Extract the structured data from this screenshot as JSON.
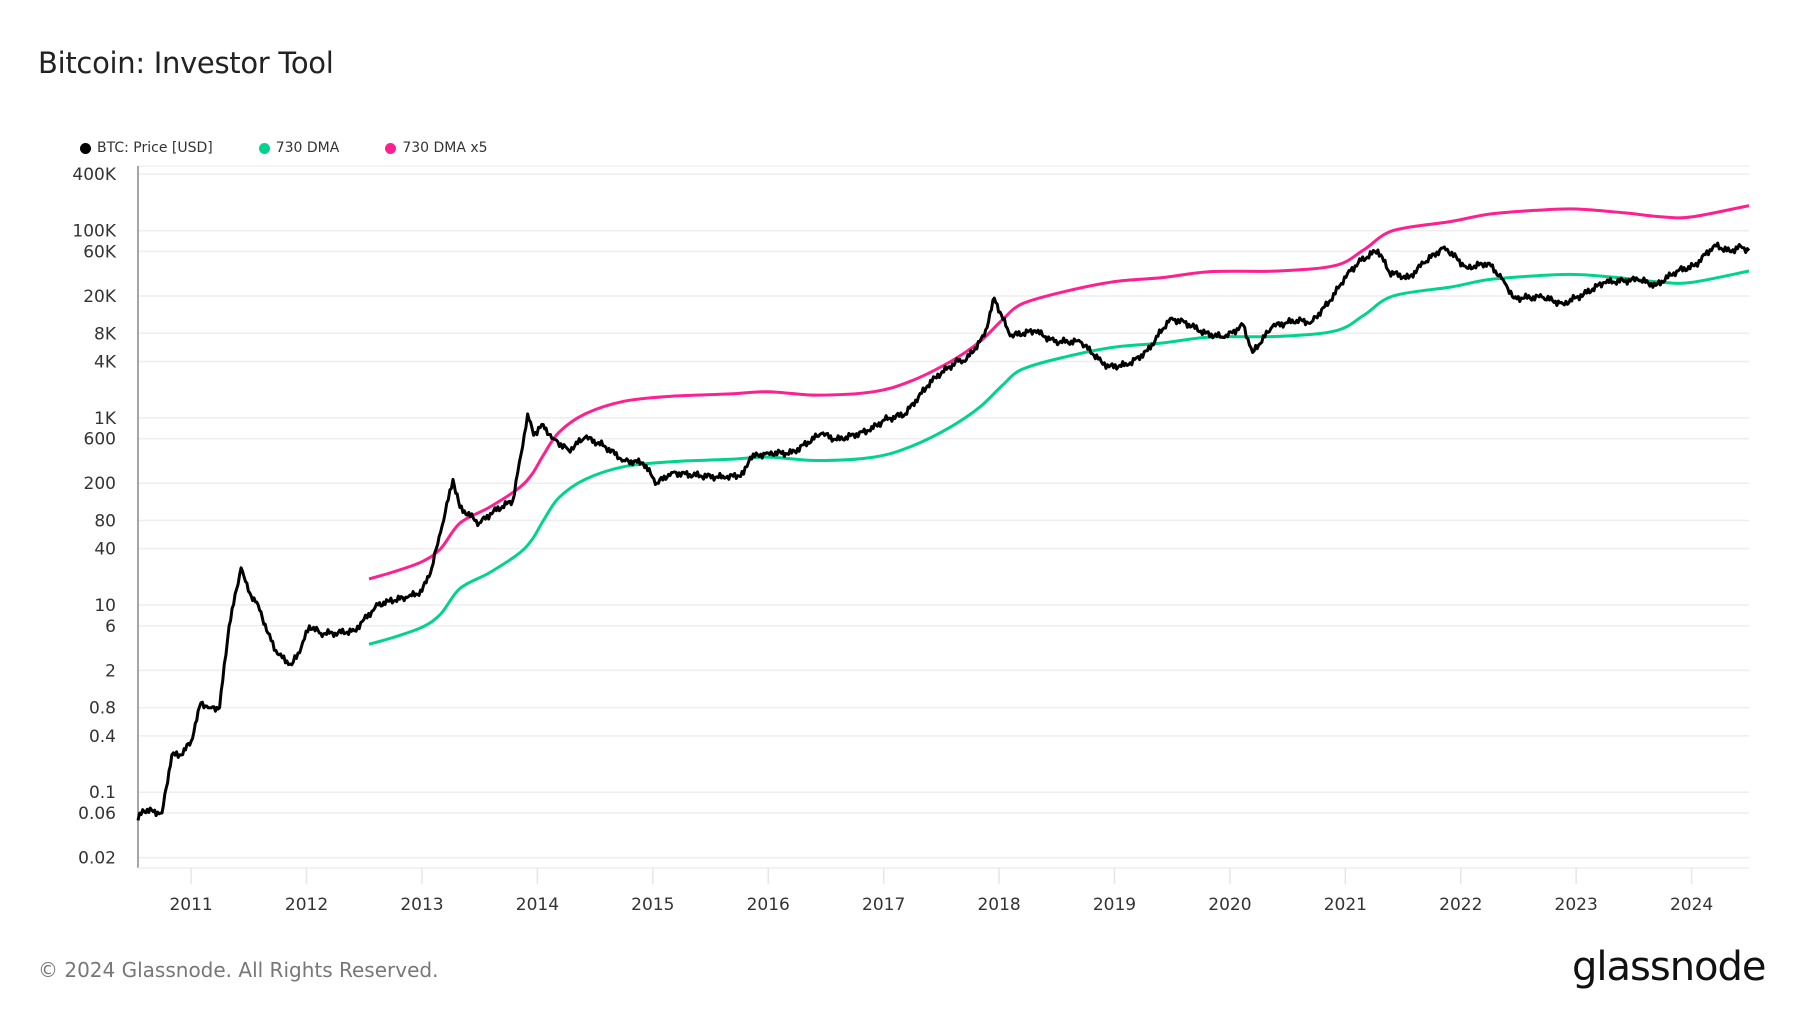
{
  "title": "Bitcoin: Investor Tool",
  "footer": "© 2024 Glassnode. All Rights Reserved.",
  "logo": "glassnode",
  "chart_data": {
    "type": "line",
    "title": "Bitcoin: Investor Tool",
    "xlabel": "",
    "ylabel": "",
    "yscale": "log",
    "ylim": [
      0.0155,
      490000
    ],
    "xlim": [
      "2010-07-17",
      "2024-07-01"
    ],
    "grid": "horizontal",
    "legend_position": "top-left",
    "x_ticks": [
      "2011",
      "2012",
      "2013",
      "2014",
      "2015",
      "2016",
      "2017",
      "2018",
      "2019",
      "2020",
      "2021",
      "2022",
      "2023",
      "2024"
    ],
    "y_ticks": [
      {
        "label": "400K",
        "value": 400000
      },
      {
        "label": "100K",
        "value": 100000
      },
      {
        "label": "60K",
        "value": 60000
      },
      {
        "label": "20K",
        "value": 20000
      },
      {
        "label": "8K",
        "value": 8000
      },
      {
        "label": "4K",
        "value": 4000
      },
      {
        "label": "1K",
        "value": 1000
      },
      {
        "label": "600",
        "value": 600
      },
      {
        "label": "200",
        "value": 200
      },
      {
        "label": "80",
        "value": 80
      },
      {
        "label": "40",
        "value": 40
      },
      {
        "label": "10",
        "value": 10
      },
      {
        "label": "6",
        "value": 6
      },
      {
        "label": "2",
        "value": 2
      },
      {
        "label": "0.8",
        "value": 0.8
      },
      {
        "label": "0.4",
        "value": 0.4
      },
      {
        "label": "0.1",
        "value": 0.1
      },
      {
        "label": "0.06",
        "value": 0.06
      },
      {
        "label": "0.02",
        "value": 0.02
      }
    ],
    "series": [
      {
        "name": "BTC: Price [USD]",
        "color": "#000000",
        "points": [
          [
            "2010-07-17",
            0.05
          ],
          [
            "2010-08-01",
            0.065
          ],
          [
            "2010-10-01",
            0.06
          ],
          [
            "2010-11-01",
            0.25
          ],
          [
            "2010-12-01",
            0.25
          ],
          [
            "2011-01-01",
            0.35
          ],
          [
            "2011-02-01",
            0.9
          ],
          [
            "2011-03-01",
            0.8
          ],
          [
            "2011-04-01",
            0.8
          ],
          [
            "2011-05-01",
            6
          ],
          [
            "2011-06-08",
            25
          ],
          [
            "2011-07-01",
            14
          ],
          [
            "2011-08-01",
            10
          ],
          [
            "2011-09-01",
            5
          ],
          [
            "2011-10-01",
            3
          ],
          [
            "2011-11-15",
            2.3
          ],
          [
            "2011-12-15",
            3.5
          ],
          [
            "2012-01-10",
            6
          ],
          [
            "2012-02-15",
            5
          ],
          [
            "2012-04-01",
            5
          ],
          [
            "2012-06-01",
            5.3
          ],
          [
            "2012-07-01",
            7
          ],
          [
            "2012-08-15",
            10
          ],
          [
            "2012-09-15",
            11
          ],
          [
            "2012-11-15",
            12
          ],
          [
            "2013-01-01",
            14
          ],
          [
            "2013-02-01",
            25
          ],
          [
            "2013-03-01",
            60
          ],
          [
            "2013-04-09",
            220
          ],
          [
            "2013-05-01",
            110
          ],
          [
            "2013-07-01",
            75
          ],
          [
            "2013-08-15",
            100
          ],
          [
            "2013-10-15",
            130
          ],
          [
            "2013-11-10",
            400
          ],
          [
            "2013-12-01",
            1100
          ],
          [
            "2013-12-20",
            650
          ],
          [
            "2014-01-15",
            850
          ],
          [
            "2014-02-20",
            600
          ],
          [
            "2014-04-10",
            450
          ],
          [
            "2014-06-01",
            620
          ],
          [
            "2014-08-01",
            500
          ],
          [
            "2014-10-01",
            350
          ],
          [
            "2014-12-01",
            330
          ],
          [
            "2015-01-14",
            200
          ],
          [
            "2015-03-01",
            260
          ],
          [
            "2015-06-01",
            240
          ],
          [
            "2015-08-20",
            230
          ],
          [
            "2015-10-15",
            250
          ],
          [
            "2015-11-05",
            380
          ],
          [
            "2016-01-01",
            420
          ],
          [
            "2016-03-15",
            420
          ],
          [
            "2016-06-18",
            680
          ],
          [
            "2016-08-05",
            580
          ],
          [
            "2016-11-15",
            730
          ],
          [
            "2017-01-04",
            950
          ],
          [
            "2017-03-10",
            1100
          ],
          [
            "2017-05-20",
            2200
          ],
          [
            "2017-06-12",
            2700
          ],
          [
            "2017-08-30",
            4200
          ],
          [
            "2017-09-15",
            4000
          ],
          [
            "2017-11-15",
            7500
          ],
          [
            "2017-12-17",
            19000
          ],
          [
            "2018-02-05",
            7500
          ],
          [
            "2018-04-25",
            8500
          ],
          [
            "2018-06-25",
            6500
          ],
          [
            "2018-09-15",
            6500
          ],
          [
            "2018-11-20",
            4000
          ],
          [
            "2018-12-15",
            3500
          ],
          [
            "2019-02-15",
            3700
          ],
          [
            "2019-04-15",
            5200
          ],
          [
            "2019-06-26",
            11500
          ],
          [
            "2019-08-10",
            10500
          ],
          [
            "2019-10-15",
            8000
          ],
          [
            "2019-12-15",
            7200
          ],
          [
            "2020-02-12",
            9800
          ],
          [
            "2020-03-13",
            5000
          ],
          [
            "2020-05-15",
            9500
          ],
          [
            "2020-07-31",
            11000
          ],
          [
            "2020-09-15",
            10500
          ],
          [
            "2020-11-15",
            18000
          ],
          [
            "2021-01-08",
            35000
          ],
          [
            "2021-02-20",
            48000
          ],
          [
            "2021-04-14",
            62000
          ],
          [
            "2021-05-20",
            36000
          ],
          [
            "2021-07-20",
            31000
          ],
          [
            "2021-09-05",
            45000
          ],
          [
            "2021-11-10",
            67000
          ],
          [
            "2022-01-20",
            40000
          ],
          [
            "2022-03-28",
            45000
          ],
          [
            "2022-05-15",
            30000
          ],
          [
            "2022-06-18",
            19000
          ],
          [
            "2022-09-15",
            19500
          ],
          [
            "2022-11-20",
            16500
          ],
          [
            "2023-01-25",
            21000
          ],
          [
            "2023-03-31",
            28000
          ],
          [
            "2023-07-15",
            30000
          ],
          [
            "2023-09-10",
            26000
          ],
          [
            "2023-11-15",
            37000
          ],
          [
            "2024-01-10",
            42000
          ],
          [
            "2024-03-14",
            70000
          ],
          [
            "2024-05-01",
            60000
          ],
          [
            "2024-06-05",
            68000
          ],
          [
            "2024-07-01",
            61000
          ]
        ]
      },
      {
        "name": "730 DMA",
        "color": "#00d48c",
        "points": [
          [
            "2012-07-17",
            3.8
          ],
          [
            "2012-10-01",
            4.5
          ],
          [
            "2013-01-01",
            5.8
          ],
          [
            "2013-03-01",
            8
          ],
          [
            "2013-05-01",
            15
          ],
          [
            "2013-08-01",
            22
          ],
          [
            "2013-11-01",
            35
          ],
          [
            "2013-12-15",
            50
          ],
          [
            "2014-01-20",
            80
          ],
          [
            "2014-03-10",
            140
          ],
          [
            "2014-06-01",
            220
          ],
          [
            "2014-10-01",
            300
          ],
          [
            "2015-03-01",
            340
          ],
          [
            "2015-09-01",
            360
          ],
          [
            "2016-01-01",
            380
          ],
          [
            "2016-06-01",
            350
          ],
          [
            "2016-12-01",
            380
          ],
          [
            "2017-04-01",
            500
          ],
          [
            "2017-08-01",
            800
          ],
          [
            "2017-11-01",
            1300
          ],
          [
            "2018-01-10",
            2200
          ],
          [
            "2018-03-15",
            3300
          ],
          [
            "2018-08-01",
            4500
          ],
          [
            "2019-01-01",
            5700
          ],
          [
            "2019-06-01",
            6300
          ],
          [
            "2019-11-01",
            7300
          ],
          [
            "2020-06-01",
            7400
          ],
          [
            "2020-12-01",
            8500
          ],
          [
            "2021-03-01",
            12500
          ],
          [
            "2021-06-01",
            20000
          ],
          [
            "2021-12-01",
            25000
          ],
          [
            "2022-04-01",
            30000
          ],
          [
            "2022-09-01",
            33000
          ],
          [
            "2023-01-01",
            34000
          ],
          [
            "2023-06-01",
            31000
          ],
          [
            "2023-10-01",
            28000
          ],
          [
            "2024-01-01",
            28000
          ],
          [
            "2024-07-01",
            37000
          ]
        ]
      },
      {
        "name": "730 DMA x5",
        "color": "#ff1f8e",
        "points": [
          [
            "2012-07-17",
            19
          ],
          [
            "2012-10-01",
            22.5
          ],
          [
            "2013-01-01",
            29
          ],
          [
            "2013-03-01",
            40
          ],
          [
            "2013-05-01",
            75
          ],
          [
            "2013-08-01",
            110
          ],
          [
            "2013-11-01",
            175
          ],
          [
            "2013-12-15",
            250
          ],
          [
            "2014-01-20",
            400
          ],
          [
            "2014-03-10",
            700
          ],
          [
            "2014-06-01",
            1100
          ],
          [
            "2014-10-01",
            1500
          ],
          [
            "2015-03-01",
            1700
          ],
          [
            "2015-09-01",
            1800
          ],
          [
            "2016-01-01",
            1900
          ],
          [
            "2016-06-01",
            1750
          ],
          [
            "2016-12-01",
            1900
          ],
          [
            "2017-04-01",
            2500
          ],
          [
            "2017-08-01",
            4000
          ],
          [
            "2017-11-01",
            6500
          ],
          [
            "2018-01-10",
            11000
          ],
          [
            "2018-03-15",
            16500
          ],
          [
            "2018-08-01",
            22500
          ],
          [
            "2019-01-01",
            28500
          ],
          [
            "2019-06-01",
            31500
          ],
          [
            "2019-11-01",
            36500
          ],
          [
            "2020-06-01",
            37000
          ],
          [
            "2020-12-01",
            42500
          ],
          [
            "2021-03-01",
            62500
          ],
          [
            "2021-06-01",
            100000
          ],
          [
            "2021-12-01",
            125000
          ],
          [
            "2022-04-01",
            150000
          ],
          [
            "2022-09-01",
            165000
          ],
          [
            "2023-01-01",
            170000
          ],
          [
            "2023-06-01",
            155000
          ],
          [
            "2023-10-01",
            140000
          ],
          [
            "2024-01-01",
            140000
          ],
          [
            "2024-07-01",
            185000
          ]
        ]
      }
    ]
  }
}
